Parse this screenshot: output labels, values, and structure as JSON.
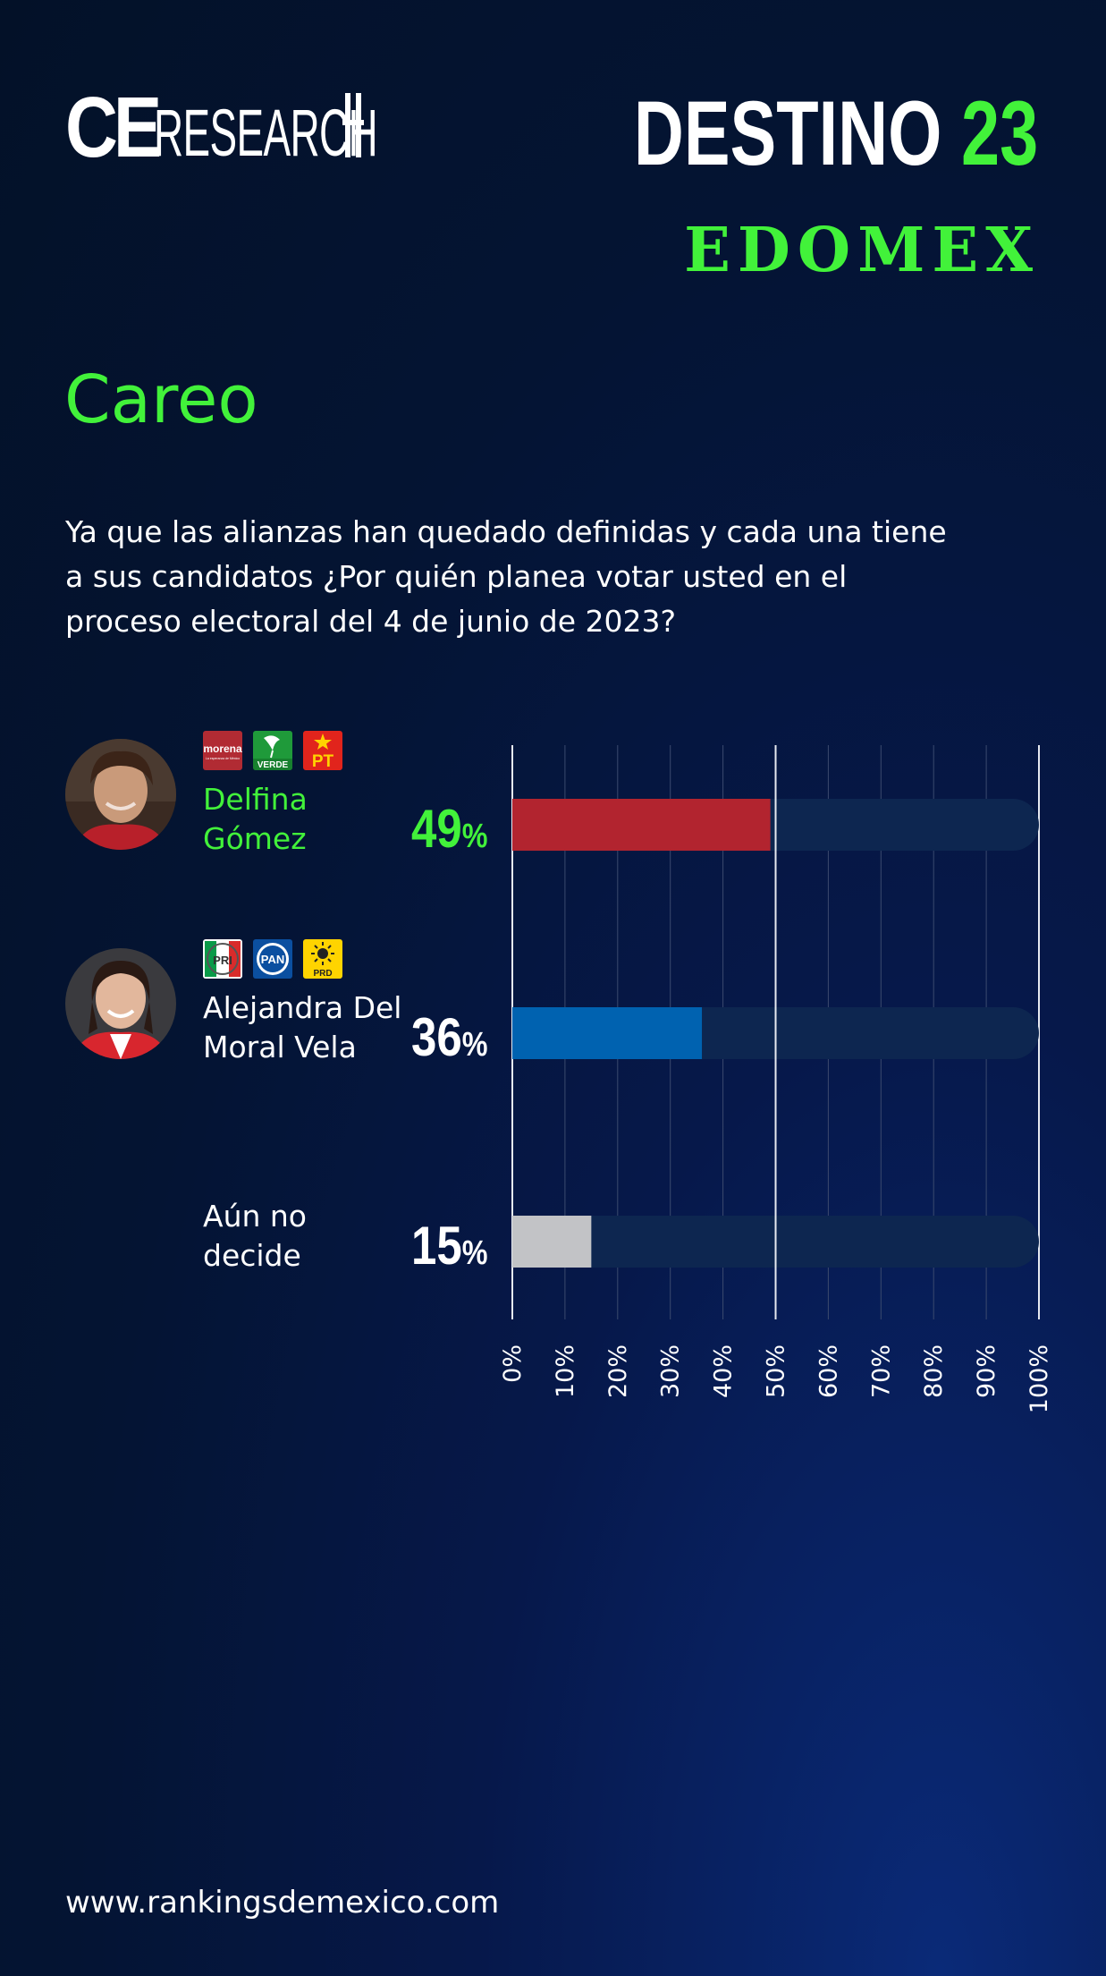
{
  "header": {
    "logo_ce": "CE",
    "logo_research": "RESEARCH",
    "destino_word": "DESTINO",
    "destino_number": "23",
    "region": "EDOMEX"
  },
  "title": "Careo",
  "question": "Ya que las alianzas han quedado definidas y cada una tiene a sus candidatos ¿Por quién planea votar usted en el proceso electoral del 4 de junio de 2023?",
  "candidates": [
    {
      "name_line1": "Delfina",
      "name_line2": "Gómez",
      "pct_number": "49",
      "pct_symbol": "%",
      "name_color": "#42f23a",
      "pct_color": "#42f23a",
      "bar_color": "#b2242f",
      "parties": [
        "morena",
        "VERDE",
        "PT"
      ],
      "party_subtitle": "La esperanza de México"
    },
    {
      "name_line1": "Alejandra Del",
      "name_line2": "Moral Vela",
      "pct_number": "36",
      "pct_symbol": "%",
      "name_color": "#ffffff",
      "pct_color": "#ffffff",
      "bar_color": "#0062b0",
      "parties": [
        "PRI",
        "PAN",
        "PRD"
      ]
    },
    {
      "name_line1": "Aún no",
      "name_line2": "decide",
      "pct_number": "15",
      "pct_symbol": "%",
      "name_color": "#ffffff",
      "pct_color": "#ffffff",
      "bar_color": "#c2c3c6"
    }
  ],
  "chart_data": {
    "type": "bar",
    "orientation": "horizontal",
    "categories": [
      "Delfina Gómez",
      "Alejandra Del Moral Vela",
      "Aún no decide"
    ],
    "values": [
      49,
      36,
      15
    ],
    "xlim": [
      0,
      100
    ],
    "x_ticks": [
      "0%",
      "10%",
      "20%",
      "30%",
      "40%",
      "50%",
      "60%",
      "70%",
      "80%",
      "90%",
      "100%"
    ],
    "grid": true,
    "track_color": "#0d2650"
  },
  "footer": {
    "url": "www.rankingsdemexico.com"
  },
  "colors": {
    "accent_green": "#42f23a",
    "background": "#041433"
  }
}
